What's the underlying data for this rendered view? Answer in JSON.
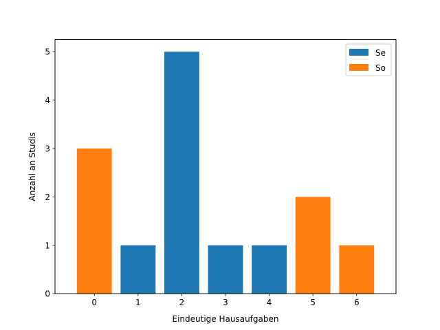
{
  "chart_data": {
    "type": "bar",
    "xlabel": "Eindeutige Hausaufgaben",
    "ylabel": "Anzahl an Studis",
    "categories": [
      "0",
      "1",
      "2",
      "3",
      "4",
      "5",
      "6"
    ],
    "xlim": [
      -0.9,
      6.9
    ],
    "ylim": [
      0,
      5.25
    ],
    "yticks": [
      0,
      1,
      2,
      3,
      4,
      5
    ],
    "grid": false,
    "legend_position": "top-right",
    "series": [
      {
        "name": "Se",
        "color": "#1f77b4",
        "values": [
          null,
          1,
          5,
          1,
          1,
          null,
          null
        ]
      },
      {
        "name": "So",
        "color": "#ff7f0e",
        "values": [
          3,
          null,
          null,
          null,
          null,
          2,
          1
        ]
      }
    ]
  }
}
